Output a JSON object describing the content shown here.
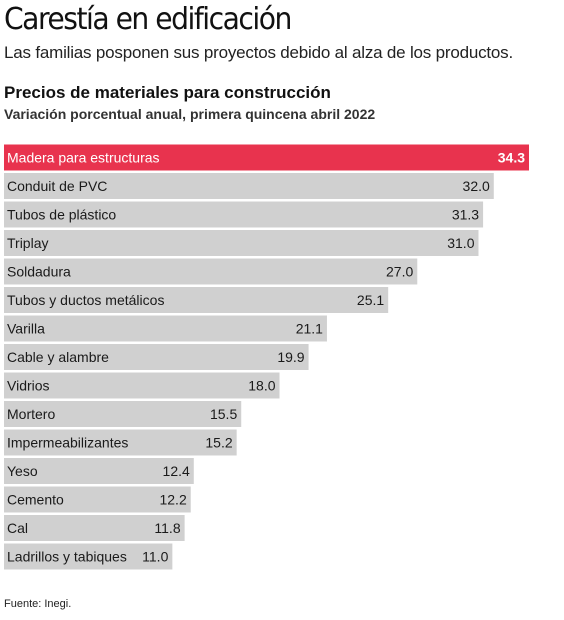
{
  "header": {
    "headline": "Carestía en edificación",
    "deck": "Las familias posponen sus proyectos debido al alza de los productos."
  },
  "chart_data": {
    "type": "bar",
    "orientation": "horizontal",
    "title": "Precios de materiales para construcción",
    "subtitle": "Variación porcentual anual, primera quincena abril  2022",
    "categories": [
      "Madera para estructuras",
      "Conduit de PVC",
      "Tubos de plástico",
      "Triplay",
      "Soldadura",
      "Tubos y ductos metálicos",
      "Varilla",
      "Cable y alambre",
      "Vidrios",
      "Mortero",
      "Impermeabilizantes",
      "Yeso",
      "Cemento",
      "Cal",
      "Ladrillos y tabiques"
    ],
    "values": [
      34.3,
      32.0,
      31.3,
      31.0,
      27.0,
      25.1,
      21.1,
      19.9,
      18.0,
      15.5,
      15.2,
      12.4,
      12.2,
      11.8,
      11.0
    ],
    "value_labels": [
      "34.3",
      "32.0",
      "31.3",
      "31.0",
      "27.0",
      "25.1",
      "21.1",
      "19.9",
      "18.0",
      "15.5",
      "15.2",
      "12.4",
      "12.2",
      "11.8",
      "11.0"
    ],
    "highlight_index": 0,
    "colors": {
      "highlight": "#e8334e",
      "bar": "#d0d0d0",
      "label_dark": "#1a1a1a",
      "label_light": "#ffffff"
    },
    "grid": false,
    "legend": "none"
  },
  "footer": {
    "source": "Fuente: Inegi."
  }
}
